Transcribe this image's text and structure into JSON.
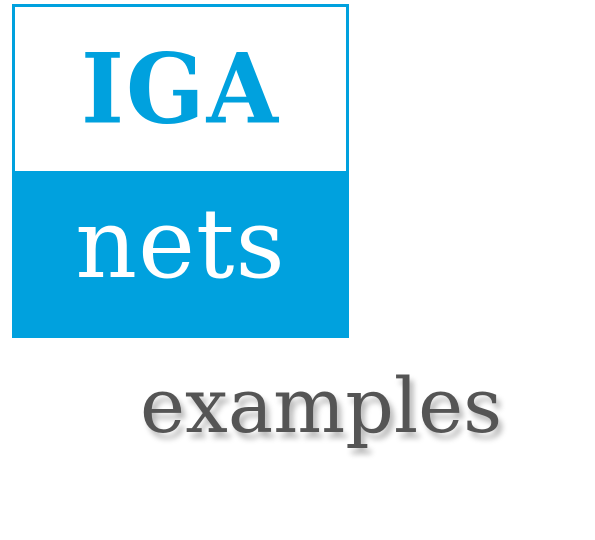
{
  "logo": {
    "line1": "IGA",
    "line2": "nets",
    "accent_color": "#00a1de"
  },
  "caption": "examples",
  "caption_color": "#555555"
}
